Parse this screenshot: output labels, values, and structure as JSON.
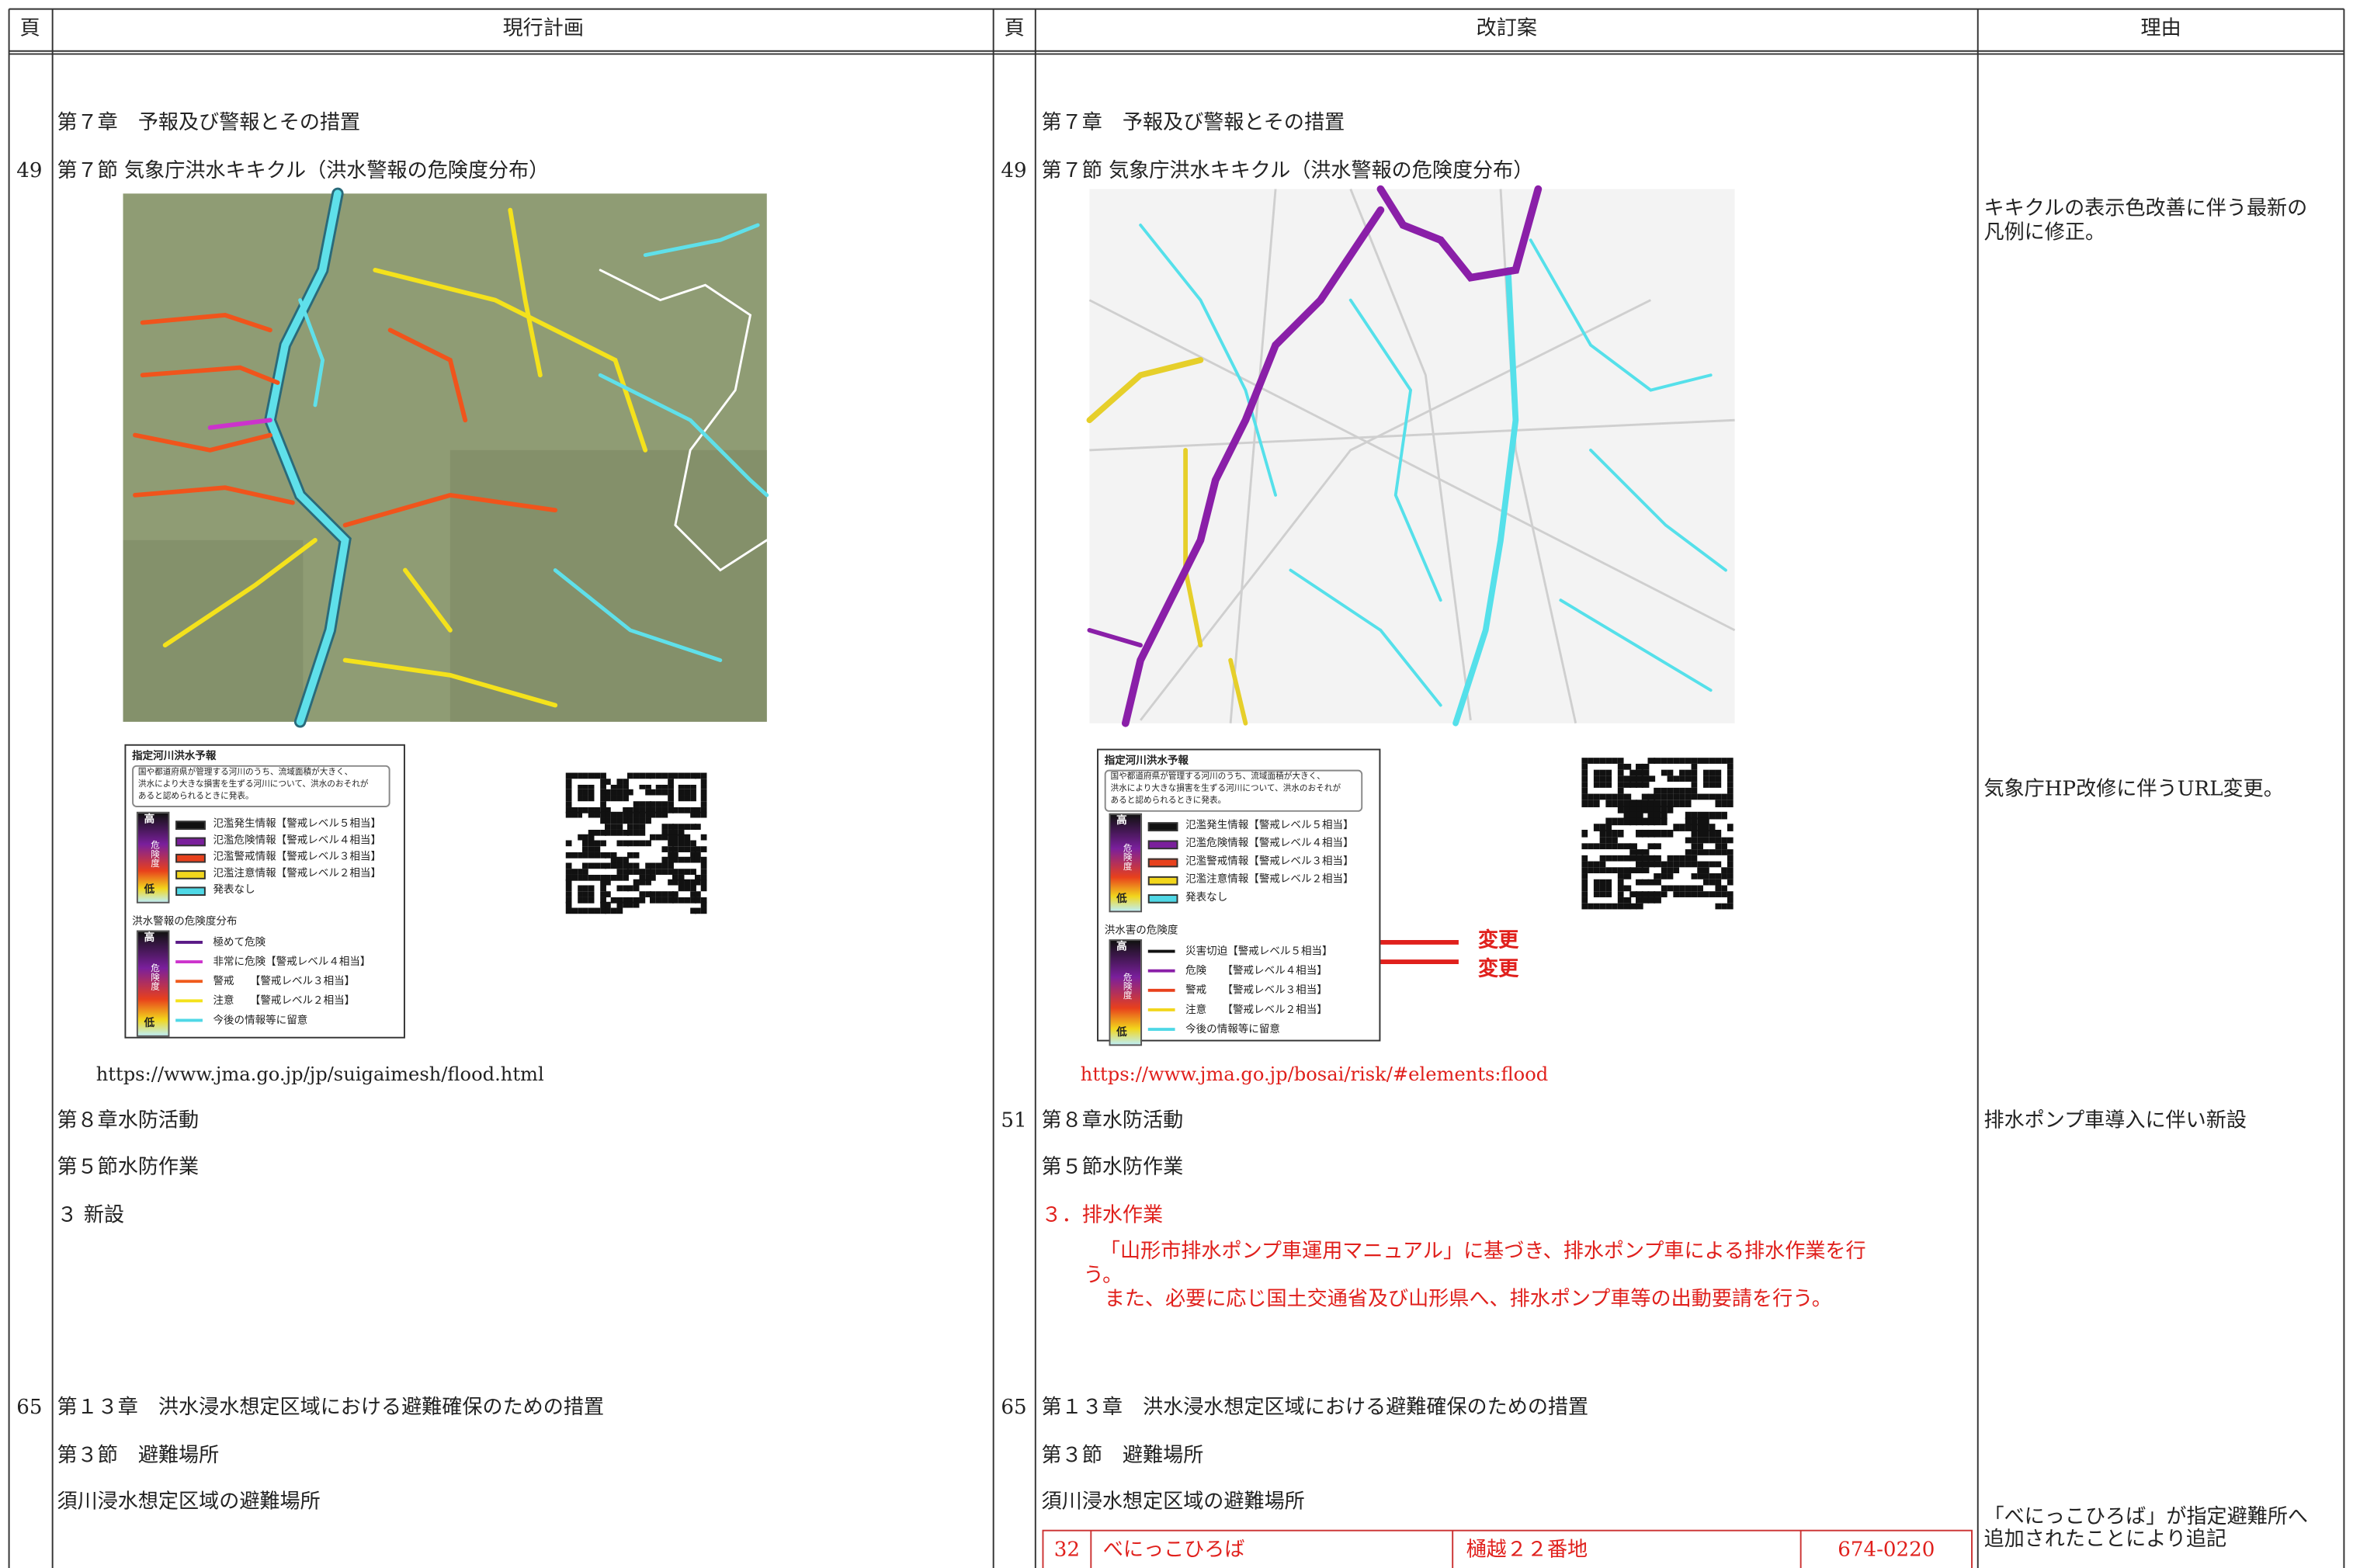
{
  "header": [
    "頁",
    "現行計画",
    "頁",
    "改訂案",
    "理由"
  ],
  "current": {
    "chapter7": "第７章　予報及び警報とその措置",
    "page_49": "49",
    "section7": "第７節 気象庁洪水キキクル（洪水警報の危険度分布）",
    "legend": {
      "title": "指定河川洪水予報",
      "note": [
        "国や都道府県が管理する河川のうち、流域面積が大きく、",
        "洪水により大きな損害を生ずる河川について、洪水のおそれが",
        "あると認められるときに発表。"
      ],
      "gauge": [
        "高",
        "危険度",
        "低"
      ],
      "items": [
        {
          "label": "氾濫発生情報【警戒レベル５相当】",
          "color": "#111111"
        },
        {
          "label": "氾濫危険情報【警戒レベル４相当】",
          "color": "#7a1f9c"
        },
        {
          "label": "氾濫警戒情報【警戒レベル３相当】",
          "color": "#e8401c"
        },
        {
          "label": "氾濫注意情報【警戒レベル２相当】",
          "color": "#f2d61c"
        },
        {
          "label": "発表なし",
          "color": "#4fd8e6"
        }
      ],
      "subtitle": "洪水警報の危険度分布",
      "risk_items": [
        {
          "label": "極めて危険",
          "color": "#5a1a86"
        },
        {
          "label": "非常に危険【警戒レベル４相当】",
          "color": "#cc33cc"
        },
        {
          "label": "警戒　　【警戒レベル３相当】",
          "color": "#f05a1c"
        },
        {
          "label": "注意　　【警戒レベル２相当】",
          "color": "#f4e21c"
        },
        {
          "label": "今後の情報等に留意",
          "color": "#4fd8e6"
        }
      ]
    },
    "url": "https://www.jma.go.jp/jp/suigaimesh/flood.html",
    "chapter8": "第８章水防活動",
    "section5": "第５節水防作業",
    "item3": "３ 新設",
    "page_65": "65",
    "chapter13": "第１３章　洪水浸水想定区域における避難確保のための措置",
    "section3": "第３節　避難場所",
    "shelter_heading": "須川浸水想定区域の避難場所"
  },
  "revised": {
    "chapter7": "第７章　予報及び警報とその措置",
    "page_49": "49",
    "section7": "第７節 気象庁洪水キキクル（洪水警報の危険度分布）",
    "legend": {
      "title": "指定河川洪水予報",
      "note": [
        "国や都道府県が管理する河川のうち、流域面積が大きく、",
        "洪水により大きな損害を生ずる河川について、洪水のおそれが",
        "あると認められるときに発表。"
      ],
      "gauge": [
        "高",
        "危険度",
        "低"
      ],
      "items": [
        {
          "label": "氾濫発生情報【警戒レベル５相当】",
          "color": "#111111"
        },
        {
          "label": "氾濫危険情報【警戒レベル４相当】",
          "color": "#7a1f9c"
        },
        {
          "label": "氾濫警戒情報【警戒レベル３相当】",
          "color": "#e8401c"
        },
        {
          "label": "氾濫注意情報【警戒レベル２相当】",
          "color": "#f2d61c"
        },
        {
          "label": "発表なし",
          "color": "#4fd8e6"
        }
      ],
      "subtitle": "洪水害の危険度",
      "risk_items": [
        {
          "label": "災害切迫【警戒レベル５相当】",
          "color": "#111111"
        },
        {
          "label": "危険　　【警戒レベル４相当】",
          "color": "#8a1fa8"
        },
        {
          "label": "警戒　　【警戒レベル３相当】",
          "color": "#e8401c"
        },
        {
          "label": "注意　　【警戒レベル２相当】",
          "color": "#f2d61c"
        },
        {
          "label": "今後の情報等に留意",
          "color": "#4fd8e6"
        }
      ]
    },
    "change_marks": [
      "変更",
      "変更"
    ],
    "url": "https://www.jma.go.jp/bosai/risk/#elements:flood",
    "page_51": "51",
    "chapter8": "第８章水防活動",
    "section5": "第５節水防作業",
    "item3_title": "３．排水作業",
    "item3_text": [
      "「山形市排水ポンプ車運用マニュアル」に基づき、排水ポンプ車による排水作業を行",
      "う。",
      "また、必要に応じ国土交通省及び山形県へ、排水ポンプ車等の出動要請を行う。"
    ],
    "page_65": "65",
    "chapter13": "第１３章　洪水浸水想定区域における避難確保のための措置",
    "section3": "第３節　避難場所",
    "shelter_heading": "須川浸水想定区域の避難場所",
    "shelter_row": [
      "32",
      "べにっこひろば",
      "樋越２２番地",
      "674-0220"
    ]
  },
  "reasons": [
    [
      "キキクルの表示色改善に伴う最新の",
      "凡例に修正。"
    ],
    [
      "気象庁HP改修に伴うURL変更。"
    ],
    [
      "排水ポンプ車導入に伴い新設"
    ],
    [
      "「べにっこひろば」が指定避難所へ",
      "追加されたことにより追記"
    ]
  ]
}
